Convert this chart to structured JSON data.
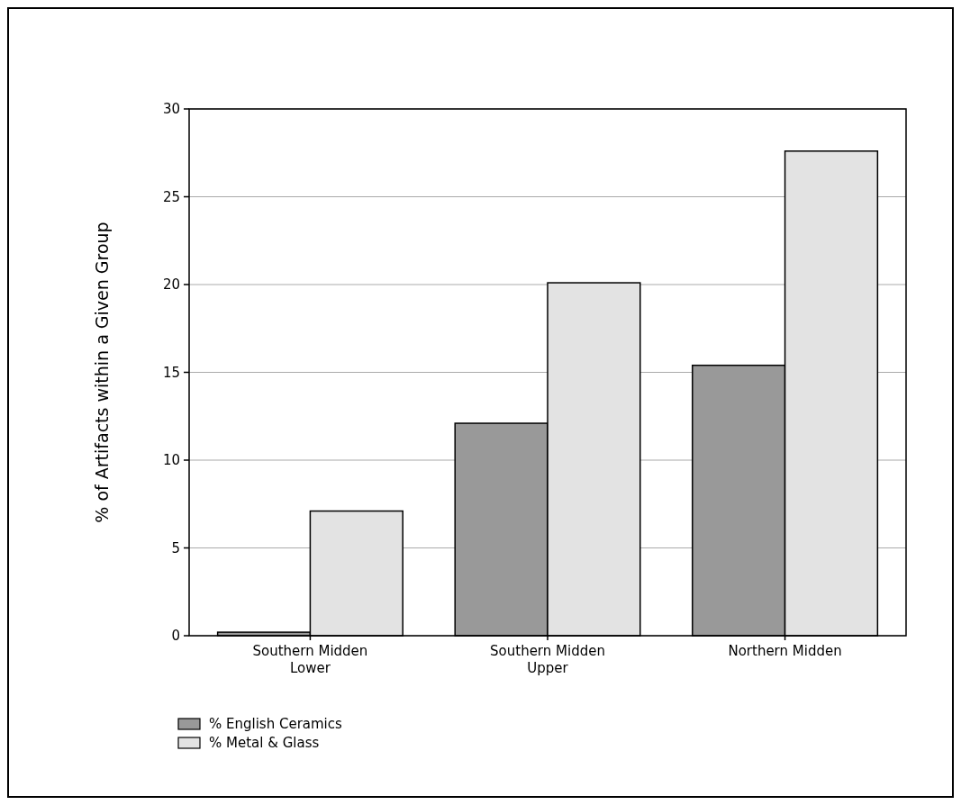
{
  "chart_data": {
    "type": "bar",
    "ylabel": "% of Artifacts within a Given Group",
    "categories": [
      "Southern Midden Lower",
      "Southern Midden Upper",
      "Northern Midden"
    ],
    "series": [
      {
        "name": "% English Ceramics",
        "color": "#999999",
        "values": [
          0.2,
          12.1,
          15.4
        ]
      },
      {
        "name": "% Metal & Glass",
        "color": "#e3e3e3",
        "values": [
          7.1,
          20.1,
          27.6
        ]
      }
    ],
    "ylim": [
      0,
      30
    ],
    "yticks": [
      0,
      5,
      10,
      15,
      20,
      25,
      30
    ],
    "grid": "y",
    "legend": "bottom left"
  }
}
